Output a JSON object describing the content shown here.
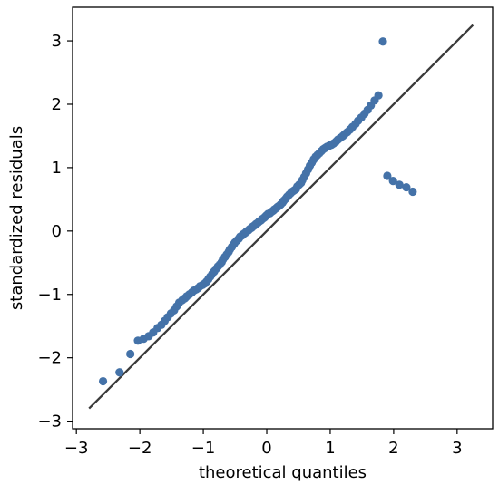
{
  "chart_data": {
    "type": "scatter",
    "title": "",
    "xlabel": "theoretical quantiles",
    "ylabel": "standardized residuals",
    "xlim": [
      -3.06,
      3.56
    ],
    "ylim": [
      -3.12,
      3.53
    ],
    "xticks": [
      -3,
      -2,
      -1,
      0,
      1,
      2,
      3
    ],
    "yticks": [
      -3,
      -2,
      -1,
      0,
      1,
      2,
      3
    ],
    "xtick_labels": [
      "−3",
      "−2",
      "−1",
      "0",
      "1",
      "2",
      "3"
    ],
    "ytick_labels": [
      "−3",
      "−2",
      "−1",
      "0",
      "1",
      "2",
      "3"
    ],
    "grid": false,
    "point_color": "#4472a8",
    "line_color": "#3a3a3a",
    "reference_line": {
      "x": [
        -2.8,
        3.25
      ],
      "y": [
        -2.8,
        3.25
      ]
    },
    "series": [
      {
        "x": [
          -2.58,
          -2.32,
          -2.15,
          -2.03,
          -1.94,
          -1.86,
          -1.79,
          -1.72,
          -1.66,
          -1.61,
          -1.56,
          -1.51,
          -1.46,
          -1.42,
          -1.38,
          -1.33,
          -1.29,
          -1.26,
          -1.22,
          -1.18,
          -1.15,
          -1.11,
          -1.08,
          -1.05,
          -1.01,
          -0.98,
          -0.95,
          -0.92,
          -0.89,
          -0.86,
          -0.83,
          -0.8,
          -0.77,
          -0.74,
          -0.71,
          -0.69,
          -0.66,
          -0.63,
          -0.6,
          -0.58,
          -0.55,
          -0.52,
          -0.5,
          -0.47,
          -0.44,
          -0.42,
          -0.39,
          -0.37,
          -0.34,
          -0.32,
          -0.29,
          -0.27,
          -0.24,
          -0.22,
          -0.19,
          -0.17,
          -0.14,
          -0.12,
          -0.09,
          -0.07,
          -0.04,
          -0.02,
          0.0,
          0.02,
          0.05,
          0.07,
          0.1,
          0.12,
          0.15,
          0.17,
          0.2,
          0.22,
          0.25,
          0.27,
          0.3,
          0.32,
          0.35,
          0.38,
          0.4,
          0.43,
          0.46,
          0.48,
          0.51,
          0.54,
          0.56,
          0.59,
          0.62,
          0.65,
          0.68,
          0.71,
          0.74,
          0.77,
          0.8,
          0.83,
          0.86,
          0.89,
          0.92,
          0.95,
          0.99,
          1.02,
          1.05,
          1.09,
          1.12,
          1.16,
          1.2,
          1.23,
          1.27,
          1.31,
          1.35,
          1.4,
          1.44,
          1.49,
          1.54,
          1.59,
          1.64,
          1.7,
          1.76,
          1.83,
          1.9,
          1.99,
          2.09,
          2.2,
          2.3
        ],
        "y": [
          -2.37,
          -2.23,
          -1.94,
          -1.73,
          -1.7,
          -1.66,
          -1.6,
          -1.53,
          -1.48,
          -1.42,
          -1.36,
          -1.3,
          -1.25,
          -1.19,
          -1.13,
          -1.09,
          -1.06,
          -1.03,
          -1.0,
          -0.97,
          -0.94,
          -0.92,
          -0.9,
          -0.87,
          -0.85,
          -0.83,
          -0.8,
          -0.76,
          -0.72,
          -0.68,
          -0.64,
          -0.6,
          -0.56,
          -0.53,
          -0.49,
          -0.45,
          -0.41,
          -0.37,
          -0.33,
          -0.29,
          -0.25,
          -0.21,
          -0.18,
          -0.15,
          -0.12,
          -0.09,
          -0.07,
          -0.05,
          -0.03,
          -0.01,
          0.01,
          0.03,
          0.05,
          0.07,
          0.09,
          0.11,
          0.13,
          0.15,
          0.17,
          0.19,
          0.21,
          0.23,
          0.25,
          0.27,
          0.28,
          0.3,
          0.32,
          0.34,
          0.36,
          0.38,
          0.4,
          0.42,
          0.45,
          0.48,
          0.51,
          0.54,
          0.57,
          0.6,
          0.62,
          0.64,
          0.66,
          0.7,
          0.73,
          0.76,
          0.8,
          0.85,
          0.91,
          0.97,
          1.03,
          1.08,
          1.13,
          1.17,
          1.2,
          1.23,
          1.26,
          1.29,
          1.31,
          1.33,
          1.35,
          1.36,
          1.38,
          1.41,
          1.44,
          1.47,
          1.5,
          1.53,
          1.56,
          1.6,
          1.64,
          1.69,
          1.74,
          1.79,
          1.85,
          1.91,
          1.98,
          2.06,
          2.14,
          2.99,
          0.87,
          0.79,
          0.73,
          0.69,
          0.62
        ]
      }
    ]
  }
}
